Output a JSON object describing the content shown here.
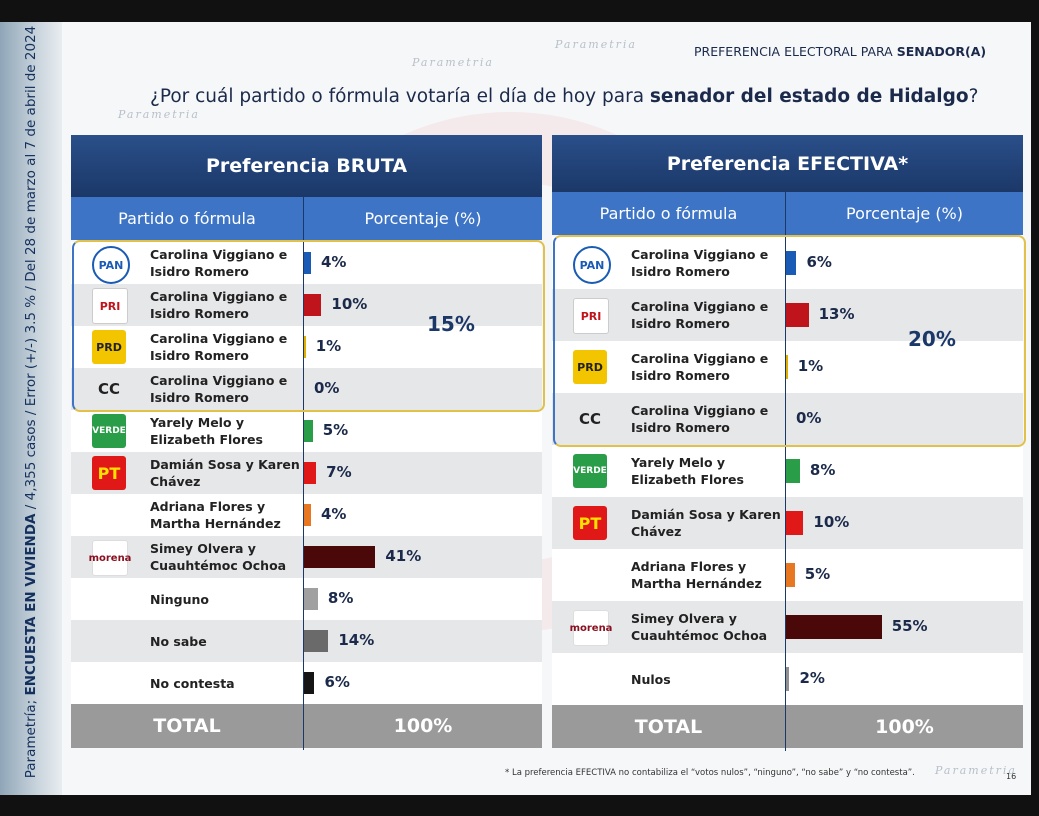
{
  "header": {
    "title_prefix": "PREFERENCIA ELECTORAL PARA ",
    "title_bold": "SENADOR(A)",
    "question_prefix": "¿Por cuál partido o fórmula votaría el día de hoy para ",
    "question_bold": "senador del estado de Hidalgo",
    "question_suffix": "?"
  },
  "sidebar": {
    "brand": "Parametría; ",
    "bold": "ENCUESTA EN VIVIENDA",
    "details": " / 4,355 casos / Error (+/-) 3.5 % / Del 28 de marzo al 7 de abril de 2024"
  },
  "watermark": "Parametria",
  "footer": {
    "note": "* La preferencia EFECTIVA no contabiliza el “votos nulos”, “ninguno”, “no sabe” y “no contesta”.",
    "page": "16"
  },
  "chart_data": [
    {
      "type": "bar",
      "title": "Preferencia BRUTA",
      "column_headers": [
        "Partido o fórmula",
        "Porcentaje (%)"
      ],
      "categories": [
        "Carolina Viggiano e Isidro Romero",
        "Carolina Viggiano e Isidro Romero",
        "Carolina Viggiano e Isidro Romero",
        "Carolina Viggiano e Isidro Romero",
        "Yarely Melo y Elizabeth Flores",
        "Damián Sosa y Karen Chávez",
        "Adriana Flores y Martha Hernández",
        "Simey Olvera y Cuauhtémoc Ochoa",
        "Ninguno",
        "No sabe",
        "No contesta"
      ],
      "logos": [
        "PAN",
        "PRI",
        "PRD",
        "CC",
        "VERDE",
        "PT",
        null,
        "morena",
        null,
        null,
        null
      ],
      "values": [
        4,
        10,
        1,
        0,
        5,
        7,
        4,
        41,
        8,
        14,
        6
      ],
      "value_labels": [
        "4%",
        "10%",
        "1%",
        "0%",
        "5%",
        "7%",
        "4%",
        "41%",
        "8%",
        "14%",
        "6%"
      ],
      "colors": [
        "#1a5bb5",
        "#c0141c",
        "#e0b000",
        "#888888",
        "#2a9d48",
        "#e01818",
        "#e87722",
        "#4a0808",
        "#a0a0a0",
        "#6a6a6a",
        "#151515"
      ],
      "group_annotation": "15%",
      "total_row": [
        "TOTAL",
        "100%"
      ]
    },
    {
      "type": "bar",
      "title": "Preferencia EFECTIVA*",
      "column_headers": [
        "Partido o fórmula",
        "Porcentaje (%)"
      ],
      "categories": [
        "Carolina Viggiano e Isidro Romero",
        "Carolina Viggiano e Isidro Romero",
        "Carolina Viggiano e Isidro Romero",
        "Carolina Viggiano e Isidro Romero",
        "Yarely Melo y Elizabeth Flores",
        "Damián Sosa y Karen Chávez",
        "Adriana Flores y Martha Hernández",
        "Simey Olvera y Cuauhtémoc Ochoa",
        "Nulos"
      ],
      "logos": [
        "PAN",
        "PRI",
        "PRD",
        "CC",
        "VERDE",
        "PT",
        null,
        "morena",
        null
      ],
      "values": [
        6,
        13,
        1,
        0,
        8,
        10,
        5,
        55,
        2
      ],
      "value_labels": [
        "6%",
        "13%",
        "1%",
        "0%",
        "8%",
        "10%",
        "5%",
        "55%",
        "2%"
      ],
      "colors": [
        "#1a5bb5",
        "#c0141c",
        "#e0b000",
        "#888888",
        "#2a9d48",
        "#e01818",
        "#e87722",
        "#4a0808",
        "#909090"
      ],
      "group_annotation": "20%",
      "total_row": [
        "TOTAL",
        "100%"
      ]
    }
  ]
}
